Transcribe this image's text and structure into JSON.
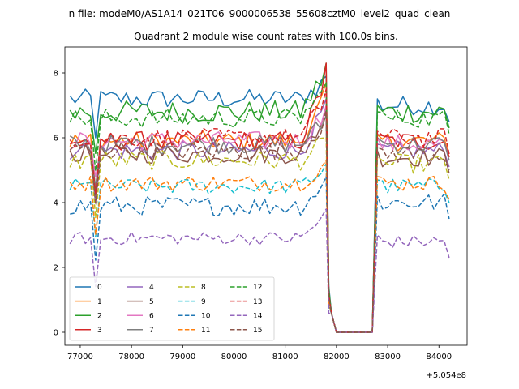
{
  "chart_data": {
    "type": "line",
    "suptitle": "n file: modeM0/AS1A14_021T06_9000006538_55608cztM0_level2_quad_clean",
    "title": "Quadrant 2 module wise count rates with 100.0s bins.",
    "xlabel": "",
    "ylabel": "",
    "x_offset_label": "+5.054e8",
    "xlim": [
      76700,
      84550
    ],
    "ylim": [
      -0.4,
      8.8
    ],
    "x_ticks": [
      77000,
      78000,
      79000,
      80000,
      81000,
      82000,
      83000,
      84000
    ],
    "x_tick_labels": [
      "77000",
      "78000",
      "79000",
      "80000",
      "81000",
      "82000",
      "83000",
      "84000"
    ],
    "y_ticks": [
      0,
      2,
      4,
      6,
      8
    ],
    "y_tick_labels": [
      "0",
      "2",
      "4",
      "6",
      "8"
    ],
    "time_bins": {
      "start": 76800,
      "step": 100,
      "pre_end": 81800,
      "gap_start": 82000,
      "gap_end": 82700,
      "post_start": 82700,
      "post_end": 84200
    },
    "legend_position": "lower-left",
    "series": [
      {
        "name": "0",
        "color": "#1f77b4",
        "style": "solid",
        "level": 7.2,
        "noise": 0.3,
        "peak": 7.9,
        "post": 7.0
      },
      {
        "name": "1",
        "color": "#ff7f0e",
        "style": "solid",
        "level": 5.9,
        "noise": 0.3,
        "peak": 7.7,
        "post": 5.9
      },
      {
        "name": "2",
        "color": "#2ca02c",
        "style": "solid",
        "level": 6.8,
        "noise": 0.35,
        "peak": 8.3,
        "post": 6.8
      },
      {
        "name": "3",
        "color": "#d62728",
        "style": "solid",
        "level": 5.9,
        "noise": 0.3,
        "peak": 8.3,
        "post": 5.9
      },
      {
        "name": "4",
        "color": "#9467bd",
        "style": "solid",
        "level": 5.6,
        "noise": 0.3,
        "peak": 7.2,
        "post": 5.6
      },
      {
        "name": "5",
        "color": "#8c564b",
        "style": "solid",
        "level": 5.5,
        "noise": 0.3,
        "peak": 6.9,
        "post": 5.4
      },
      {
        "name": "6",
        "color": "#e377c2",
        "style": "solid",
        "level": 5.9,
        "noise": 0.3,
        "peak": 7.0,
        "post": 5.8
      },
      {
        "name": "7",
        "color": "#7f7f7f",
        "style": "solid",
        "level": 5.8,
        "noise": 0.3,
        "peak": 6.7,
        "post": 5.8
      },
      {
        "name": "8",
        "color": "#bcbd22",
        "style": "dashed",
        "level": 5.3,
        "noise": 0.3,
        "peak": 6.0,
        "post": 5.2
      },
      {
        "name": "9",
        "color": "#17becf",
        "style": "dashed",
        "level": 4.5,
        "noise": 0.25,
        "peak": 5.2,
        "post": 4.5
      },
      {
        "name": "10",
        "color": "#1f77b4",
        "style": "dashed",
        "level": 3.9,
        "noise": 0.3,
        "peak": 4.8,
        "post": 4.0
      },
      {
        "name": "11",
        "color": "#ff7f0e",
        "style": "dashed",
        "level": 4.6,
        "noise": 0.25,
        "peak": 5.3,
        "post": 4.6
      },
      {
        "name": "12",
        "color": "#2ca02c",
        "style": "dashed",
        "level": 6.6,
        "noise": 0.3,
        "peak": 7.7,
        "post": 6.6
      },
      {
        "name": "13",
        "color": "#d62728",
        "style": "dashed",
        "level": 6.0,
        "noise": 0.3,
        "peak": 7.5,
        "post": 6.0
      },
      {
        "name": "14",
        "color": "#9467bd",
        "style": "dashed",
        "level": 2.9,
        "noise": 0.2,
        "peak": 3.8,
        "post": 2.8
      },
      {
        "name": "15",
        "color": "#8c564b",
        "style": "dashed",
        "level": 5.6,
        "noise": 0.3,
        "peak": 6.8,
        "post": 5.5
      }
    ]
  }
}
